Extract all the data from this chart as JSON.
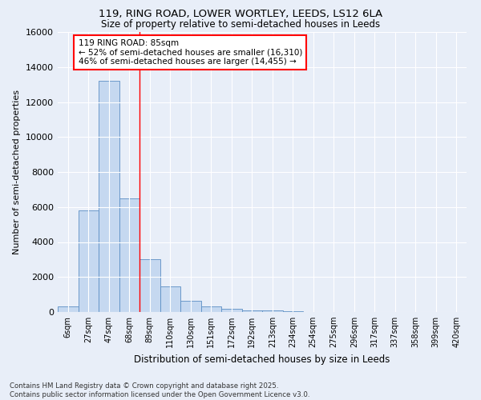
{
  "title_line1": "119, RING ROAD, LOWER WORTLEY, LEEDS, LS12 6LA",
  "title_line2": "Size of property relative to semi-detached houses in Leeds",
  "xlabel": "Distribution of semi-detached houses by size in Leeds",
  "ylabel": "Number of semi-detached properties",
  "categories": [
    "6sqm",
    "27sqm",
    "47sqm",
    "68sqm",
    "89sqm",
    "110sqm",
    "130sqm",
    "151sqm",
    "172sqm",
    "192sqm",
    "213sqm",
    "234sqm",
    "254sqm",
    "275sqm",
    "296sqm",
    "317sqm",
    "337sqm",
    "358sqm",
    "399sqm",
    "420sqm"
  ],
  "values": [
    300,
    5800,
    13200,
    6500,
    3000,
    1480,
    650,
    310,
    200,
    100,
    100,
    50,
    0,
    0,
    0,
    0,
    0,
    0,
    0,
    0
  ],
  "bar_color": "#c5d8f0",
  "bar_edge_color": "#5b8ec4",
  "vline_x_idx": 3,
  "vline_color": "red",
  "annotation_text": "119 RING ROAD: 85sqm\n← 52% of semi-detached houses are smaller (16,310)\n46% of semi-detached houses are larger (14,455) →",
  "annotation_box_color": "white",
  "annotation_box_edge": "red",
  "ylim": [
    0,
    16000
  ],
  "yticks": [
    0,
    2000,
    4000,
    6000,
    8000,
    10000,
    12000,
    14000,
    16000
  ],
  "footnote": "Contains HM Land Registry data © Crown copyright and database right 2025.\nContains public sector information licensed under the Open Government Licence v3.0.",
  "bg_color": "#e8eef8",
  "grid_color": "#ffffff"
}
